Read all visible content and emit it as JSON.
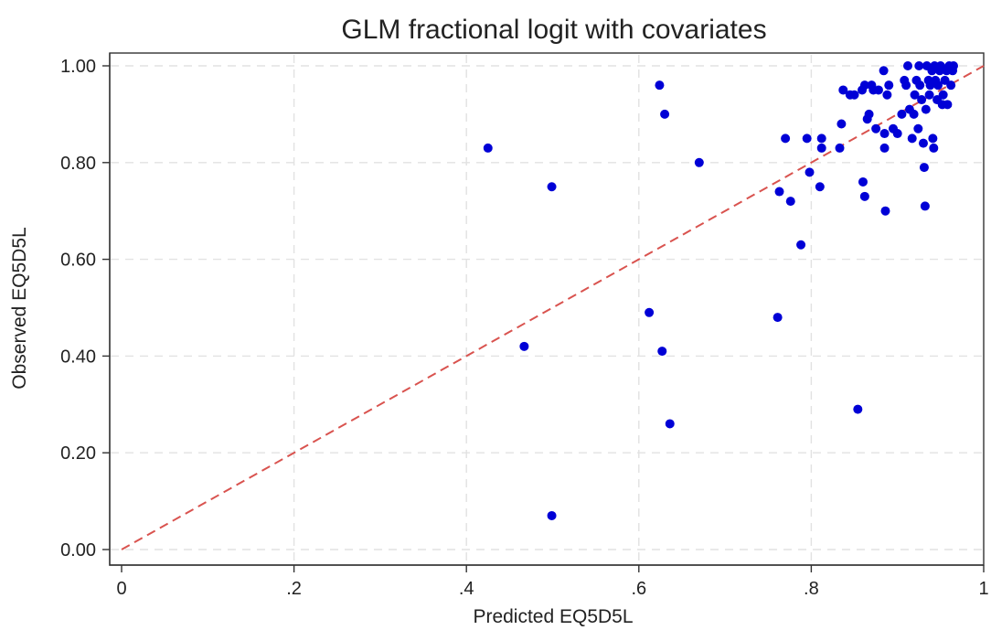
{
  "chart_data": {
    "type": "scatter",
    "title": "GLM fractional logit with covariates",
    "xlabel": "Predicted EQ5D5L",
    "ylabel": "Observed EQ5D5L",
    "xlim": [
      0,
      1
    ],
    "ylim": [
      0,
      1
    ],
    "x_ticks": [
      {
        "value": 0,
        "label": "0"
      },
      {
        "value": 0.2,
        "label": ".2"
      },
      {
        "value": 0.4,
        "label": ".4"
      },
      {
        "value": 0.6,
        "label": ".6"
      },
      {
        "value": 0.8,
        "label": ".8"
      },
      {
        "value": 1,
        "label": "1"
      }
    ],
    "y_ticks": [
      {
        "value": 0,
        "label": "0.00"
      },
      {
        "value": 0.2,
        "label": "0.20"
      },
      {
        "value": 0.4,
        "label": "0.40"
      },
      {
        "value": 0.6,
        "label": "0.60"
      },
      {
        "value": 0.8,
        "label": "0.80"
      },
      {
        "value": 1,
        "label": "1.00"
      }
    ],
    "grid": true,
    "series": [
      {
        "kind": "points",
        "color": "#0000d6",
        "points": [
          [
            0.425,
            0.83
          ],
          [
            0.467,
            0.42
          ],
          [
            0.499,
            0.75
          ],
          [
            0.499,
            0.07
          ],
          [
            0.612,
            0.49
          ],
          [
            0.624,
            0.96
          ],
          [
            0.627,
            0.41
          ],
          [
            0.63,
            0.9
          ],
          [
            0.636,
            0.26
          ],
          [
            0.67,
            0.8
          ],
          [
            0.761,
            0.48
          ],
          [
            0.763,
            0.74
          ],
          [
            0.77,
            0.85
          ],
          [
            0.776,
            0.72
          ],
          [
            0.788,
            0.63
          ],
          [
            0.795,
            0.85
          ],
          [
            0.798,
            0.78
          ],
          [
            0.81,
            0.75
          ],
          [
            0.812,
            0.85
          ],
          [
            0.812,
            0.83
          ],
          [
            0.833,
            0.83
          ],
          [
            0.835,
            0.88
          ],
          [
            0.837,
            0.95
          ],
          [
            0.845,
            0.94
          ],
          [
            0.85,
            0.94
          ],
          [
            0.854,
            0.29
          ],
          [
            0.859,
            0.95
          ],
          [
            0.86,
            0.76
          ],
          [
            0.862,
            0.96
          ],
          [
            0.862,
            0.73
          ],
          [
            0.865,
            0.89
          ],
          [
            0.867,
            0.9
          ],
          [
            0.87,
            0.96
          ],
          [
            0.872,
            0.95
          ],
          [
            0.875,
            0.87
          ],
          [
            0.878,
            0.95
          ],
          [
            0.884,
            0.99
          ],
          [
            0.885,
            0.86
          ],
          [
            0.885,
            0.83
          ],
          [
            0.886,
            0.7
          ],
          [
            0.888,
            0.94
          ],
          [
            0.89,
            0.96
          ],
          [
            0.895,
            0.87
          ],
          [
            0.9,
            0.86
          ],
          [
            0.905,
            0.9
          ],
          [
            0.908,
            0.97
          ],
          [
            0.91,
            0.96
          ],
          [
            0.912,
            1.0
          ],
          [
            0.914,
            0.91
          ],
          [
            0.917,
            0.85
          ],
          [
            0.919,
            0.9
          ],
          [
            0.92,
            0.94
          ],
          [
            0.922,
            0.97
          ],
          [
            0.924,
            0.87
          ],
          [
            0.925,
            1.0
          ],
          [
            0.926,
            0.96
          ],
          [
            0.928,
            0.93
          ],
          [
            0.93,
            0.84
          ],
          [
            0.931,
            0.79
          ],
          [
            0.932,
            0.71
          ],
          [
            0.933,
            0.91
          ],
          [
            0.934,
            1.0
          ],
          [
            0.936,
            0.97
          ],
          [
            0.937,
            0.94
          ],
          [
            0.938,
            0.96
          ],
          [
            0.94,
            0.99
          ],
          [
            0.941,
            0.85
          ],
          [
            0.942,
            0.83
          ],
          [
            0.943,
            1.0
          ],
          [
            0.944,
            0.97
          ],
          [
            0.946,
            0.93
          ],
          [
            0.947,
            0.96
          ],
          [
            0.949,
            0.99
          ],
          [
            0.95,
            1.0
          ],
          [
            0.952,
            0.92
          ],
          [
            0.953,
            0.94
          ],
          [
            0.955,
            0.97
          ],
          [
            0.957,
            0.99
          ],
          [
            0.958,
            0.92
          ],
          [
            0.96,
            1.0
          ],
          [
            0.962,
            0.96
          ],
          [
            0.964,
            0.99
          ],
          [
            0.965,
            1.0
          ]
        ]
      },
      {
        "kind": "reference-line",
        "color": "#d9534f",
        "dashed": true,
        "points": [
          [
            0,
            0
          ],
          [
            1,
            1
          ]
        ]
      }
    ]
  }
}
